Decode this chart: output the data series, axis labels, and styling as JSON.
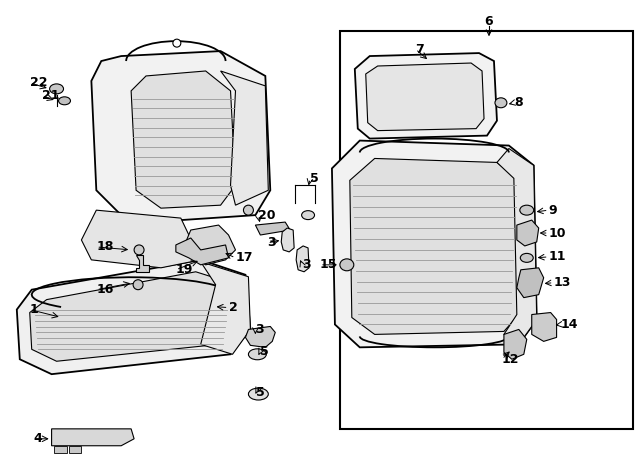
{
  "background_color": "#ffffff",
  "line_color": "#000000",
  "figsize": [
    6.4,
    4.71
  ],
  "dpi": 100
}
